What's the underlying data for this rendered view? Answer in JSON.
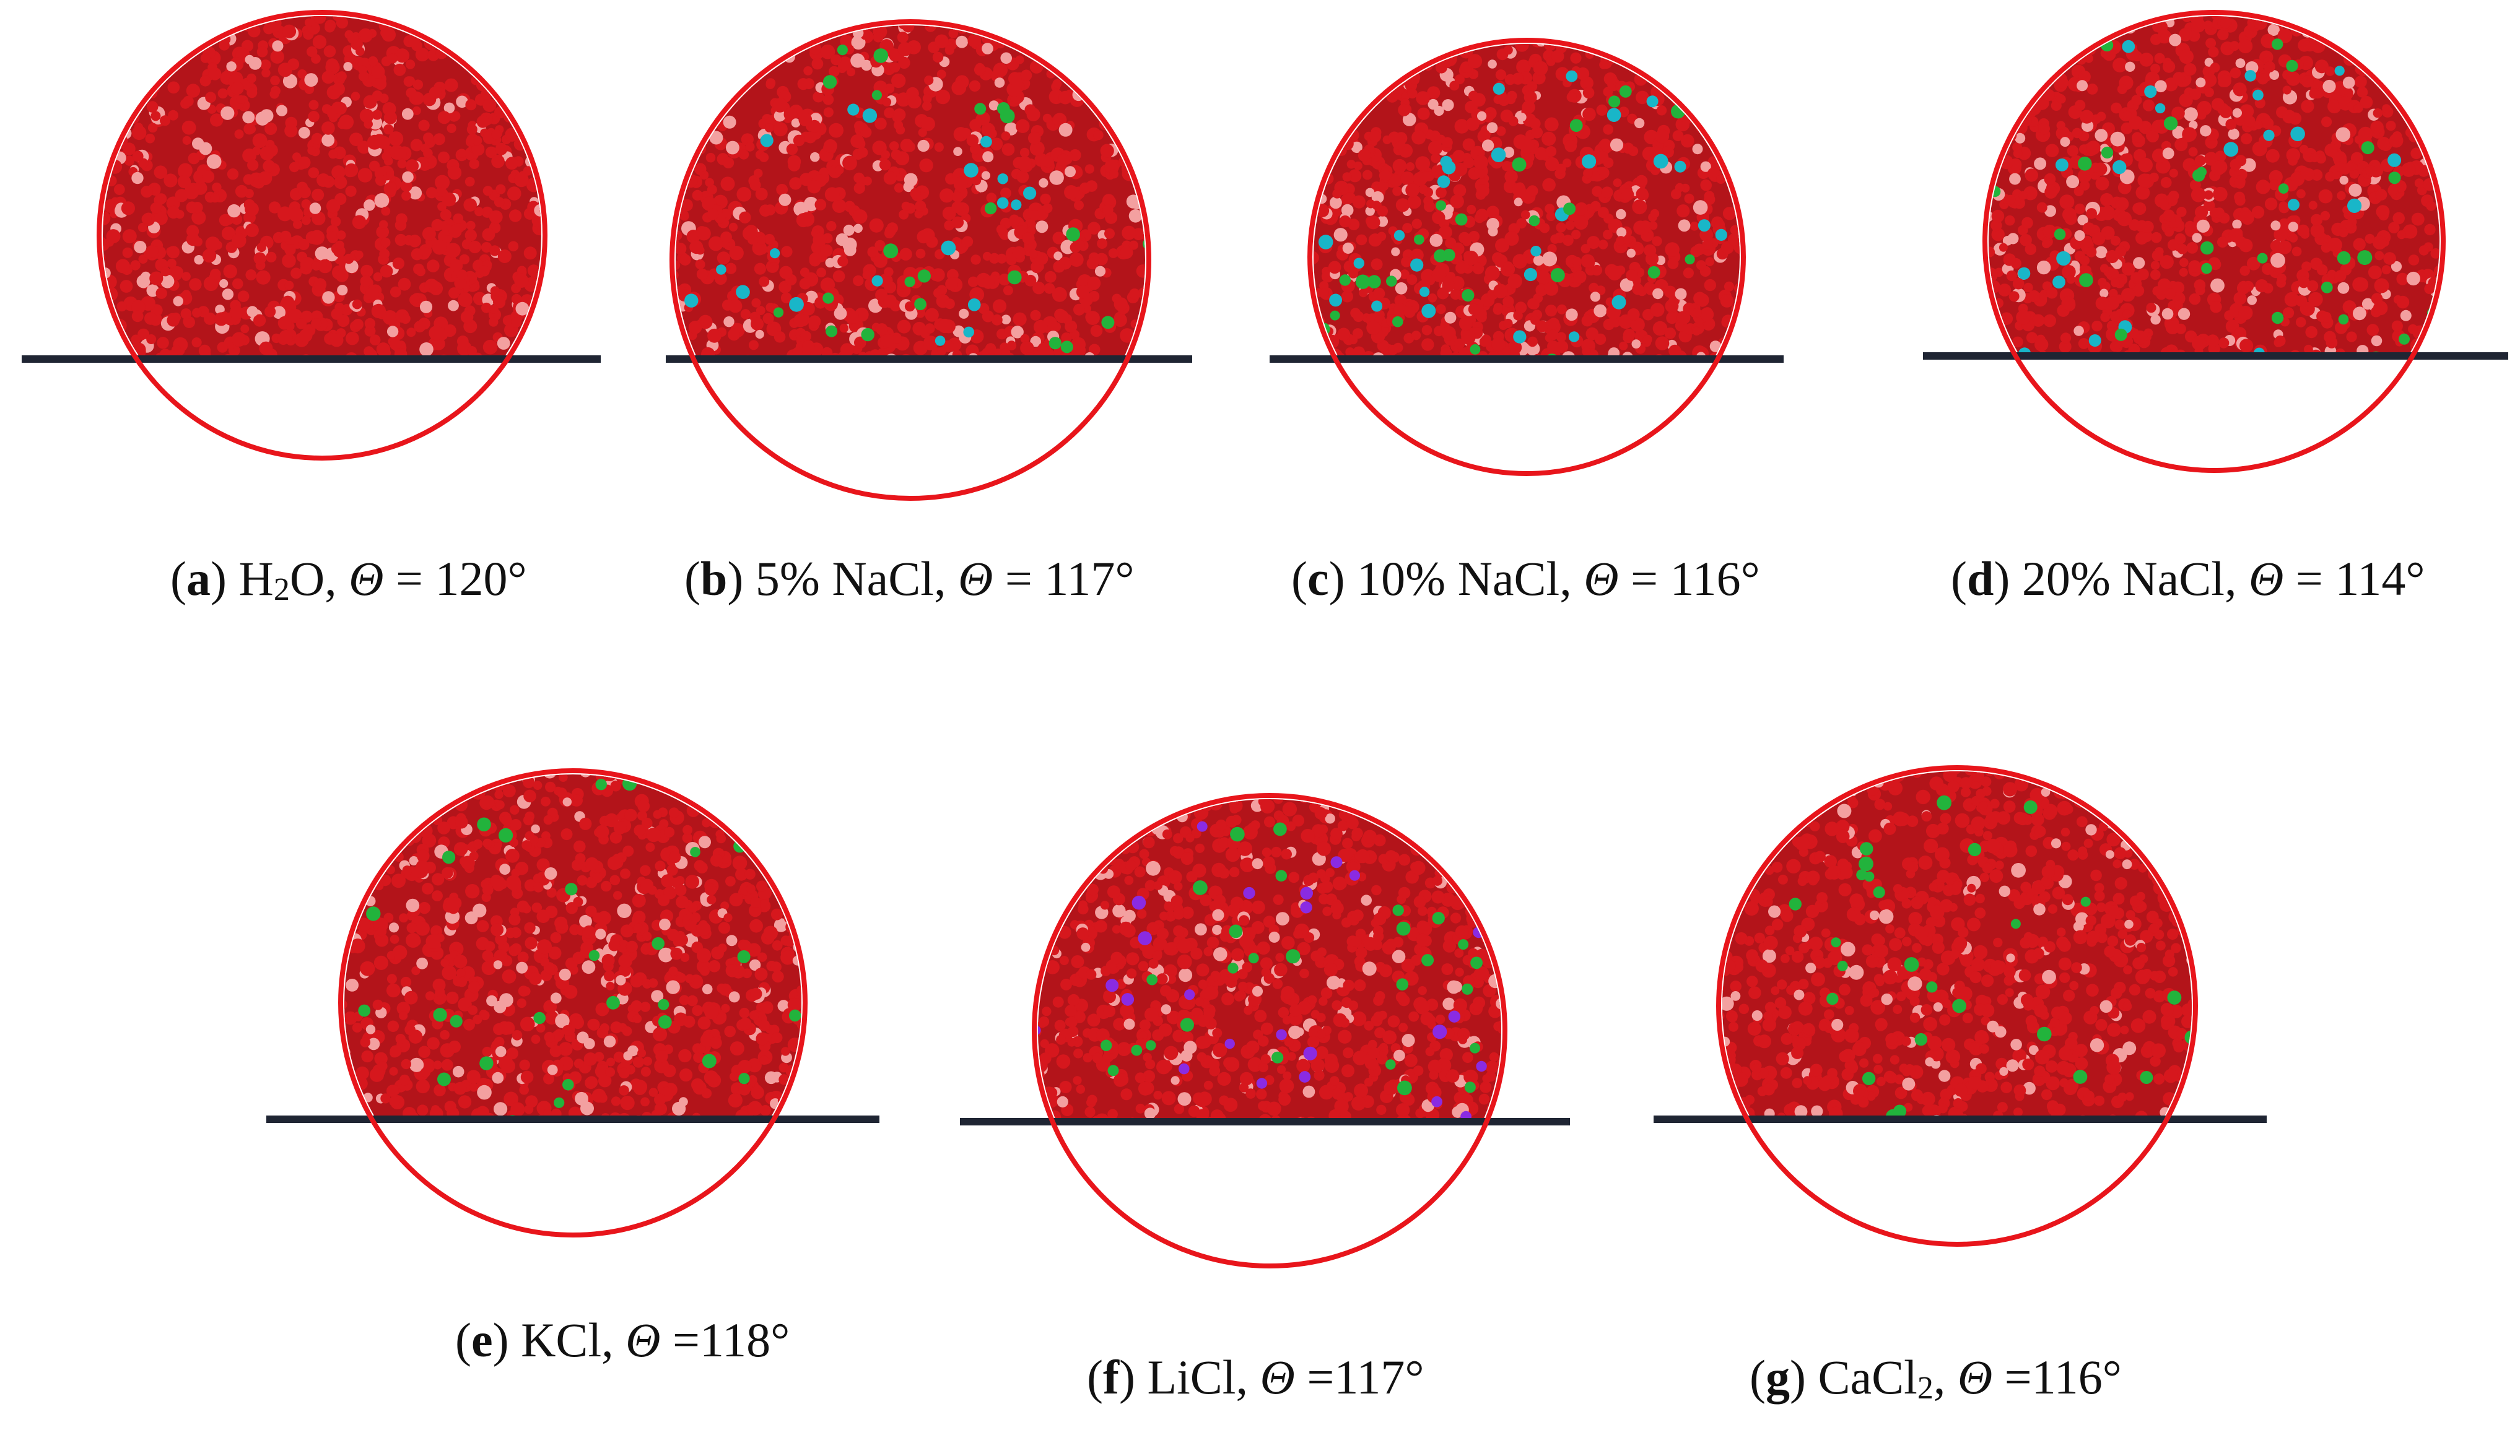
{
  "colors": {
    "background": "#ffffff",
    "circle": "#e8151b",
    "droplet_base": "#b3141a",
    "molecule_red": "#d6171d",
    "molecule_light": "#f3a0a0",
    "substrate": "#1f2533",
    "ion_cyan": "#19b6c8",
    "ion_green": "#22b33c",
    "ion_purple": "#8a2be2",
    "caption_text": "#111111"
  },
  "panels": [
    {
      "id": "a",
      "letter": "a",
      "formula_main": "H",
      "formula_sub": "2",
      "formula_rest": "O",
      "theta_symbol": "Θ",
      "eq": " = ",
      "angle": "120°",
      "ions": []
    },
    {
      "id": "b",
      "letter": "b",
      "formula_main": "5% NaCl",
      "formula_sub": "",
      "formula_rest": "",
      "theta_symbol": "Θ",
      "eq": " = ",
      "angle": "117°",
      "ions": [
        "cyan",
        "green"
      ]
    },
    {
      "id": "c",
      "letter": "c",
      "formula_main": "10% NaCl",
      "formula_sub": "",
      "formula_rest": "",
      "theta_symbol": "Θ",
      "eq": " = ",
      "angle": "116°",
      "ions": [
        "cyan",
        "green"
      ]
    },
    {
      "id": "d",
      "letter": "d",
      "formula_main": "20% NaCl",
      "formula_sub": "",
      "formula_rest": "",
      "theta_symbol": "Θ",
      "eq": " = ",
      "angle": "114°",
      "ions": [
        "cyan",
        "green"
      ]
    },
    {
      "id": "e",
      "letter": "e",
      "formula_main": "KCl",
      "formula_sub": "",
      "formula_rest": "",
      "theta_symbol": "Θ",
      "eq": " =",
      "angle": "118°",
      "ions": [
        "green"
      ]
    },
    {
      "id": "f",
      "letter": "f",
      "formula_main": "LiCl",
      "formula_sub": "",
      "formula_rest": "",
      "theta_symbol": "Θ",
      "eq": " =",
      "angle": "117°",
      "ions": [
        "green",
        "purple"
      ]
    },
    {
      "id": "g",
      "letter": "g",
      "formula_main": "CaCl",
      "formula_sub": "2",
      "formula_rest": "",
      "theta_symbol": "Θ",
      "eq": " =",
      "angle": "116°",
      "ions": [
        "green"
      ]
    }
  ]
}
